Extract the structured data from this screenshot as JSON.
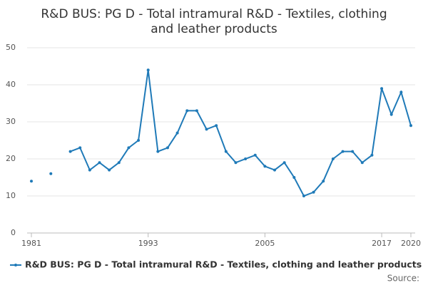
{
  "chart_data": {
    "type": "line",
    "title": "R&D BUS: PG D - Total intramural R&D - Textiles, clothing and leather products",
    "x": [
      1981,
      1982,
      1983,
      1984,
      1985,
      1986,
      1987,
      1988,
      1989,
      1990,
      1991,
      1992,
      1993,
      1994,
      1995,
      1996,
      1997,
      1998,
      1999,
      2000,
      2001,
      2002,
      2003,
      2004,
      2005,
      2006,
      2007,
      2008,
      2009,
      2010,
      2011,
      2012,
      2013,
      2014,
      2015,
      2016,
      2017,
      2018,
      2019,
      2020
    ],
    "series": [
      {
        "name": "R&D BUS: PG D - Total intramural R&D - Textiles, clothing and leather products",
        "color": "#1f7ab8",
        "values": [
          14,
          null,
          16,
          null,
          22,
          23,
          17,
          19,
          17,
          19,
          23,
          25,
          44,
          22,
          23,
          27,
          33,
          33,
          28,
          29,
          22,
          19,
          20,
          21,
          18,
          17,
          19,
          15,
          10,
          11,
          14,
          20,
          22,
          22,
          19,
          21,
          39,
          32,
          38,
          29
        ]
      }
    ],
    "xlim": [
      1981,
      2020
    ],
    "xticks": [
      1981,
      1993,
      2005,
      2017,
      2020
    ],
    "ylim": [
      0,
      50
    ],
    "yticks": [
      0,
      10,
      20,
      30,
      40,
      50
    ],
    "grid": true,
    "source": "Source:"
  }
}
